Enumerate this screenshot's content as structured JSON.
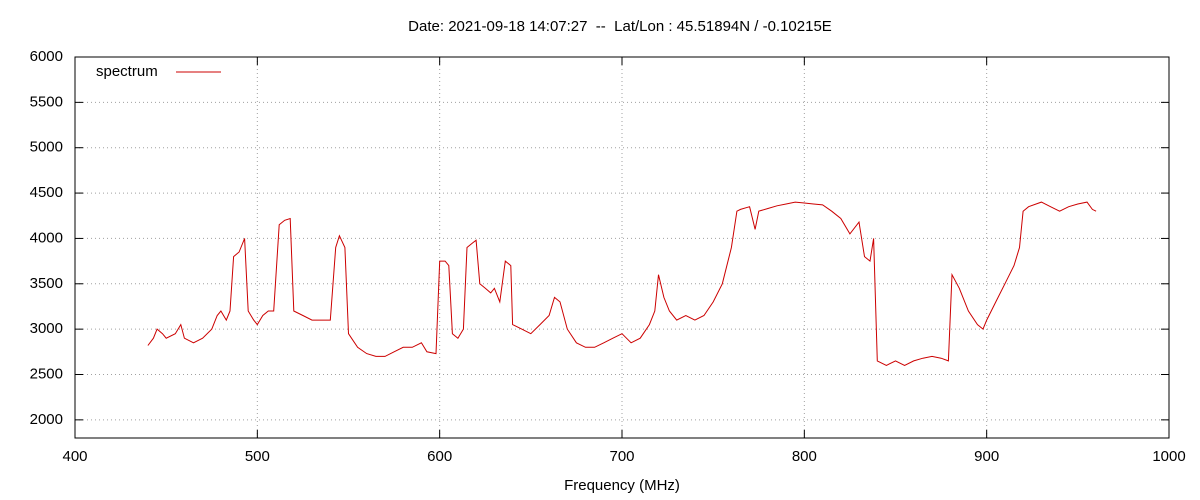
{
  "chart_data": {
    "type": "line",
    "title": "Date: 2021-09-18 14:07:27  --  Lat/Lon : 45.51894N / -0.10215E",
    "x_label": "Frequency (MHz)",
    "x": [
      440,
      443,
      445,
      448,
      450,
      455,
      458,
      460,
      465,
      470,
      475,
      478,
      480,
      483,
      485,
      487,
      490,
      493,
      495,
      498,
      500,
      503,
      506,
      509,
      512,
      515,
      518,
      520,
      525,
      530,
      535,
      540,
      543,
      545,
      548,
      550,
      555,
      560,
      565,
      570,
      575,
      580,
      585,
      590,
      593,
      598,
      600,
      603,
      605,
      607,
      610,
      613,
      615,
      618,
      620,
      622,
      625,
      628,
      630,
      633,
      636,
      639,
      640,
      645,
      650,
      655,
      660,
      663,
      666,
      670,
      675,
      680,
      685,
      690,
      695,
      700,
      705,
      710,
      715,
      718,
      720,
      723,
      726,
      730,
      735,
      740,
      745,
      750,
      755,
      760,
      763,
      765,
      770,
      773,
      775,
      780,
      785,
      790,
      795,
      800,
      805,
      810,
      815,
      820,
      825,
      830,
      833,
      836,
      838,
      840,
      845,
      850,
      855,
      860,
      865,
      870,
      875,
      879,
      881,
      885,
      890,
      895,
      898,
      900,
      905,
      910,
      915,
      918,
      920,
      923,
      930,
      935,
      940,
      945,
      950,
      955,
      958,
      960
    ],
    "series": [
      {
        "name": "spectrum",
        "color": "#cc0000",
        "values": [
          2820,
          2900,
          3000,
          2950,
          2900,
          2950,
          3050,
          2900,
          2850,
          2900,
          3000,
          3150,
          3200,
          3100,
          3200,
          3800,
          3850,
          4000,
          3200,
          3100,
          3050,
          3150,
          3200,
          3200,
          4150,
          4200,
          4220,
          3200,
          3150,
          3100,
          3100,
          3100,
          3900,
          4030,
          3900,
          2950,
          2800,
          2730,
          2700,
          2700,
          2750,
          2800,
          2800,
          2850,
          2750,
          2730,
          3750,
          3750,
          3700,
          2950,
          2900,
          3000,
          3900,
          3950,
          3980,
          3500,
          3450,
          3400,
          3450,
          3300,
          3750,
          3700,
          3050,
          3000,
          2950,
          3050,
          3150,
          3350,
          3300,
          3000,
          2850,
          2800,
          2800,
          2850,
          2900,
          2950,
          2850,
          2900,
          3050,
          3200,
          3600,
          3350,
          3200,
          3100,
          3150,
          3100,
          3150,
          3300,
          3500,
          3900,
          4300,
          4320,
          4350,
          4100,
          4300,
          4330,
          4360,
          4380,
          4400,
          4390,
          4380,
          4370,
          4300,
          4220,
          4050,
          4180,
          3800,
          3750,
          4000,
          2650,
          2600,
          2650,
          2600,
          2650,
          2680,
          2700,
          2680,
          2650,
          3600,
          3450,
          3200,
          3050,
          3000,
          3100,
          3300,
          3500,
          3700,
          3900,
          4300,
          4350,
          4400,
          4350,
          4300,
          4350,
          4380,
          4400,
          4320,
          4300
        ]
      }
    ],
    "xlim": [
      400,
      1000
    ],
    "xticks": [
      400,
      500,
      600,
      700,
      800,
      900,
      1000
    ],
    "ylim": [
      1800,
      6000
    ],
    "yticks": [
      2000,
      2500,
      3000,
      3500,
      4000,
      4500,
      5000,
      5500,
      6000
    ],
    "grid": true,
    "legend": "top-left"
  }
}
